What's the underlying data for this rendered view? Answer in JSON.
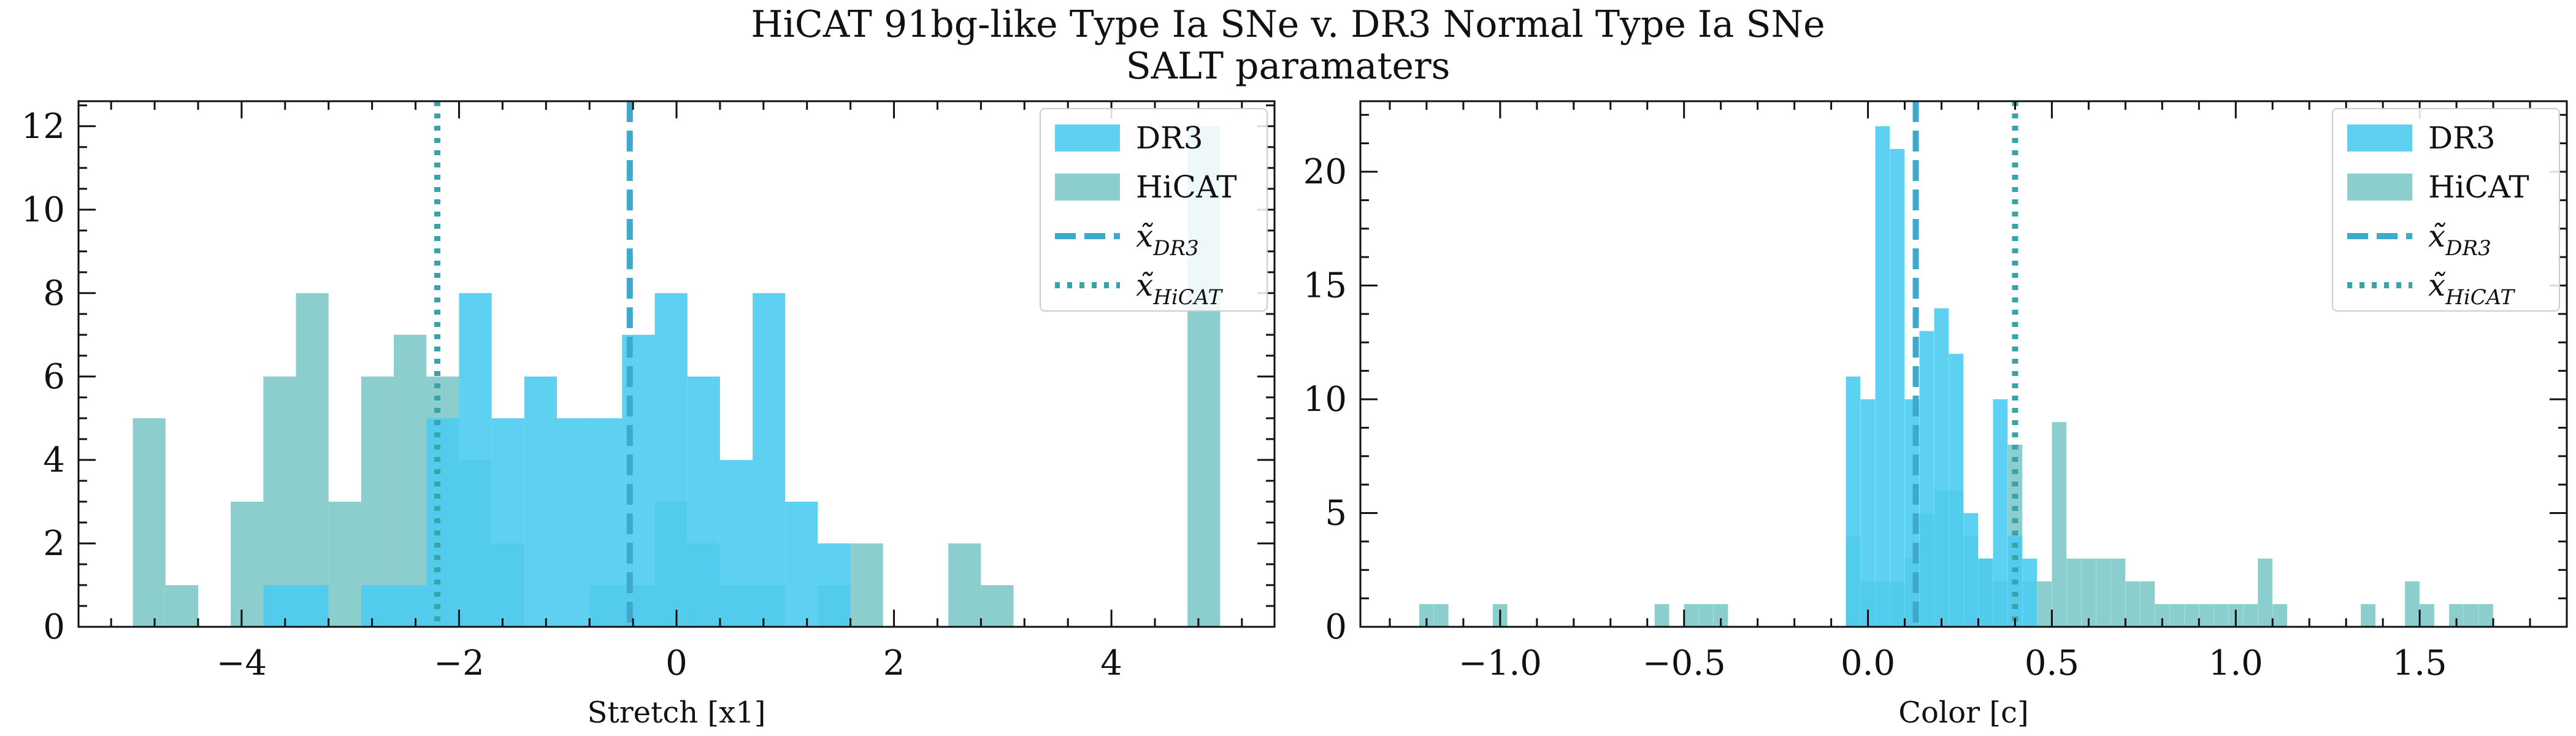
{
  "figure": {
    "title": "HiCAT 91bg-like Type Ia SNe v. DR3 Normal Type Ia SNe",
    "subtitle": "SALT paramaters"
  },
  "colors": {
    "dr3": "#4ccbf0",
    "hicat": "#7fc8c8",
    "dr3_median": "#3fa9cc",
    "hicat_median": "#3aa3a9",
    "hist_alpha": 0.9
  },
  "legend": {
    "dr3_label": "DR3",
    "hicat_label": "HiCAT",
    "dr3_median_label": "x̃",
    "dr3_median_sub": "DR3",
    "hicat_median_label": "x̃",
    "hicat_median_sub": "HiCAT"
  },
  "chart_data": [
    {
      "type": "histogram",
      "xlabel": "Stretch [x1]",
      "ylabel": "",
      "xlim": [
        -5.5,
        5.5
      ],
      "ylim": [
        0,
        12.6
      ],
      "xticks": [
        -4,
        -2,
        0,
        2,
        4
      ],
      "yticks": [
        0,
        2,
        4,
        6,
        8,
        10,
        12
      ],
      "legend_position": "top-right",
      "series": [
        {
          "name": "HiCAT",
          "bin_width": 0.3,
          "bins": [
            [
              -5.0,
              5
            ],
            [
              -4.7,
              1
            ],
            [
              -4.1,
              3
            ],
            [
              -3.8,
              6
            ],
            [
              -3.5,
              8
            ],
            [
              -3.2,
              3
            ],
            [
              -2.9,
              6
            ],
            [
              -2.6,
              7
            ],
            [
              -2.3,
              6
            ],
            [
              -2.0,
              4
            ],
            [
              -1.7,
              2
            ],
            [
              -1.4,
              0
            ],
            [
              -1.1,
              0
            ],
            [
              -0.8,
              1
            ],
            [
              -0.5,
              1
            ],
            [
              -0.2,
              3
            ],
            [
              0.1,
              2
            ],
            [
              0.4,
              1
            ],
            [
              0.7,
              1
            ],
            [
              1.0,
              0
            ],
            [
              1.3,
              1
            ],
            [
              1.6,
              2
            ],
            [
              2.5,
              2
            ],
            [
              2.8,
              1
            ],
            [
              4.7,
              12
            ]
          ]
        },
        {
          "name": "DR3",
          "bin_width": 0.3,
          "bins": [
            [
              -3.8,
              1
            ],
            [
              -3.5,
              1
            ],
            [
              -3.2,
              0
            ],
            [
              -2.9,
              1
            ],
            [
              -2.6,
              1
            ],
            [
              -2.3,
              5
            ],
            [
              -2.0,
              8
            ],
            [
              -1.7,
              5
            ],
            [
              -1.4,
              6
            ],
            [
              -1.1,
              5
            ],
            [
              -0.8,
              5
            ],
            [
              -0.5,
              7
            ],
            [
              -0.2,
              8
            ],
            [
              0.1,
              6
            ],
            [
              0.4,
              4
            ],
            [
              0.7,
              8
            ],
            [
              1.0,
              3
            ],
            [
              1.3,
              2
            ],
            [
              1.6,
              0
            ]
          ]
        }
      ],
      "medians": {
        "DR3": -0.43,
        "HiCAT": -2.2
      }
    },
    {
      "type": "histogram",
      "xlabel": "Color [c]",
      "ylabel": "",
      "xlim": [
        -1.38,
        1.9
      ],
      "ylim": [
        0,
        23.1
      ],
      "xticks": [
        -1.0,
        -0.5,
        0.0,
        0.5,
        1.0,
        1.5
      ],
      "yticks": [
        0,
        5,
        10,
        15,
        20
      ],
      "legend_position": "top-right",
      "series": [
        {
          "name": "HiCAT",
          "bin_width": 0.0395,
          "bins": [
            [
              -1.22,
              1
            ],
            [
              -1.18,
              1
            ],
            [
              -1.02,
              1
            ],
            [
              -0.58,
              1
            ],
            [
              -0.5,
              1
            ],
            [
              -0.46,
              1
            ],
            [
              -0.42,
              1
            ],
            [
              -0.06,
              4
            ],
            [
              -0.02,
              2
            ],
            [
              0.02,
              2
            ],
            [
              0.06,
              2
            ],
            [
              0.1,
              3
            ],
            [
              0.14,
              5
            ],
            [
              0.18,
              6
            ],
            [
              0.22,
              6
            ],
            [
              0.26,
              4
            ],
            [
              0.3,
              3
            ],
            [
              0.34,
              2
            ],
            [
              0.38,
              8
            ],
            [
              0.42,
              2
            ],
            [
              0.46,
              2
            ],
            [
              0.5,
              9
            ],
            [
              0.54,
              3
            ],
            [
              0.58,
              3
            ],
            [
              0.62,
              3
            ],
            [
              0.66,
              3
            ],
            [
              0.7,
              2
            ],
            [
              0.74,
              2
            ],
            [
              0.78,
              1
            ],
            [
              0.82,
              1
            ],
            [
              0.86,
              1
            ],
            [
              0.9,
              1
            ],
            [
              0.94,
              1
            ],
            [
              0.98,
              1
            ],
            [
              1.02,
              1
            ],
            [
              1.06,
              3
            ],
            [
              1.1,
              1
            ],
            [
              1.14,
              0
            ],
            [
              1.34,
              1
            ],
            [
              1.46,
              2
            ],
            [
              1.5,
              1
            ],
            [
              1.58,
              1
            ],
            [
              1.62,
              1
            ],
            [
              1.66,
              1
            ]
          ]
        },
        {
          "name": "DR3",
          "bin_width": 0.0395,
          "bins": [
            [
              -0.06,
              11
            ],
            [
              -0.02,
              10
            ],
            [
              0.02,
              22
            ],
            [
              0.06,
              21
            ],
            [
              0.1,
              10
            ],
            [
              0.14,
              13
            ],
            [
              0.18,
              14
            ],
            [
              0.22,
              12
            ],
            [
              0.26,
              5
            ],
            [
              0.3,
              3
            ],
            [
              0.34,
              10
            ],
            [
              0.38,
              4
            ],
            [
              0.42,
              3
            ]
          ]
        }
      ],
      "medians": {
        "DR3": 0.13,
        "HiCAT": 0.4
      }
    }
  ]
}
